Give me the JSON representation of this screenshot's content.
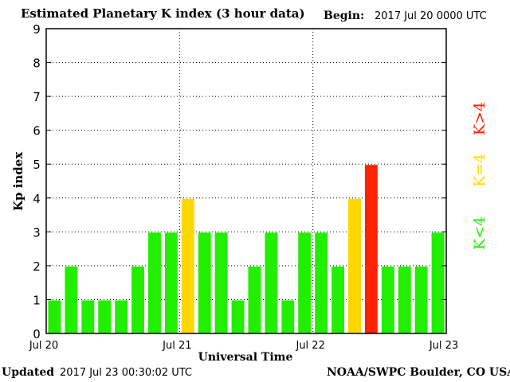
{
  "header": {
    "title": "Estimated Planetary K index (3 hour data)",
    "begin_label": "Begin:",
    "begin_value": "2017 Jul 20 0000 UTC"
  },
  "footer": {
    "updated_label": "Updated",
    "updated_value": "2017 Jul 23 00:30:02 UTC",
    "source": "NOAA/SWPC Boulder, CO USA"
  },
  "colors": {
    "below4": "#22ee00",
    "equal4": "#ffd700",
    "above4": "#ff2200",
    "plot_bg": "#ffffff",
    "grid": "#000000"
  },
  "chart_data": {
    "type": "bar",
    "title": "Estimated Planetary K index (3 hour data)",
    "xlabel": "Universal Time",
    "ylabel": "Kp index",
    "ylim": [
      0,
      9
    ],
    "yticks": [
      "0",
      "1",
      "2",
      "3",
      "4",
      "5",
      "6",
      "7",
      "8",
      "9"
    ],
    "xticks": [
      "Jul 20",
      "Jul 21",
      "Jul 22",
      "Jul 23"
    ],
    "values": [
      1,
      2,
      1,
      1,
      1,
      2,
      3,
      3,
      4,
      3,
      3,
      1,
      2,
      3,
      1,
      3,
      3,
      2,
      4,
      5,
      2,
      2,
      2,
      3
    ],
    "grid": true,
    "legend": {
      "placement": "right",
      "entries": [
        {
          "label": "K<4",
          "color": "#22ee00"
        },
        {
          "label": "K=4",
          "color": "#ffd700"
        },
        {
          "label": "K>4",
          "color": "#ff2200"
        }
      ]
    }
  }
}
